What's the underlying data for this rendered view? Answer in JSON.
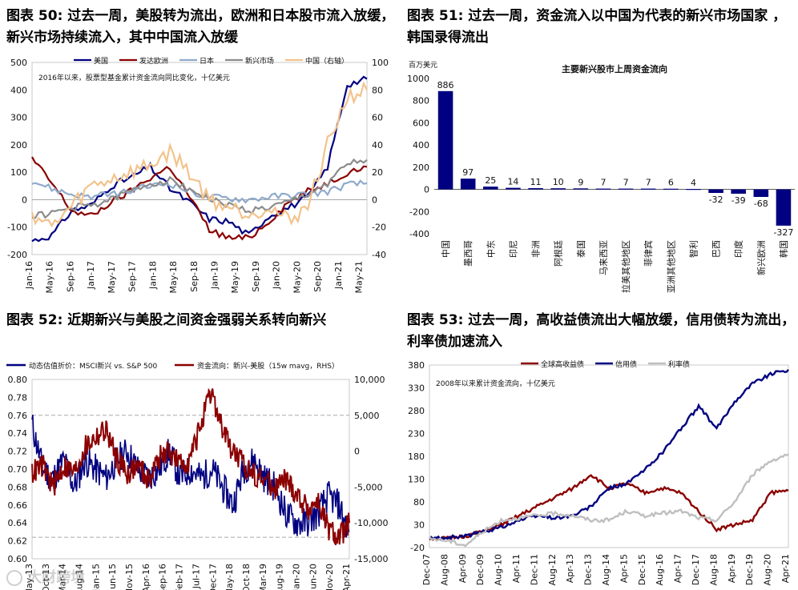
{
  "figures": {
    "f50": {
      "title": "图表 50: 过去一周，美股转为流出，欧洲和日本股市流入放缓，新兴市场持续流入，其中中国流入放缓"
    },
    "f51": {
      "title": "图表 51: 过去一周，资金流入以中国为代表的新兴市场国家 ，韩国录得流出"
    },
    "f52": {
      "title": "图表 52: 近期新兴与美股之间资金强弱关系转向新兴"
    },
    "f53": {
      "title": "图表 53: 过去一周，高收益债流出大幅放缓，信用债转为流出，利率债加速流入"
    }
  },
  "watermark": "大财跨境",
  "chart_data": [
    {
      "id": "f50",
      "type": "line",
      "annotation": "2016年以来，股票型基金累计资金流向同比变化，十亿美元",
      "x_ticks": [
        "Jan-16",
        "May-16",
        "Sep-16",
        "Jan-17",
        "May-17",
        "Sep-17",
        "Jan-18",
        "May-18",
        "Sep-18",
        "Jan-19",
        "May-19",
        "Sep-19",
        "Jan-20",
        "May-20",
        "Sep-20",
        "Jan-21",
        "May-21"
      ],
      "x": [
        0,
        4,
        8,
        12,
        16,
        20,
        24,
        28,
        32,
        36,
        40,
        44,
        48,
        52,
        56,
        60,
        64,
        65
      ],
      "ylim": [
        -200,
        500
      ],
      "y_ticks": [
        -200,
        -100,
        0,
        100,
        200,
        300,
        400,
        500
      ],
      "y2lim": [
        -40,
        100
      ],
      "y2_ticks": [
        -40,
        -20,
        0,
        20,
        40,
        60,
        80,
        100
      ],
      "legend_position": "top",
      "series": [
        {
          "name": "美国",
          "color": "#000080",
          "axis": "left",
          "values": [
            -150,
            -130,
            -40,
            -20,
            50,
            80,
            120,
            40,
            -10,
            -70,
            -80,
            -130,
            -60,
            -30,
            10,
            120,
            420,
            440
          ]
        },
        {
          "name": "发达欧洲",
          "color": "#8B0000",
          "axis": "left",
          "values": [
            150,
            60,
            -40,
            -60,
            -10,
            30,
            80,
            120,
            10,
            -110,
            -140,
            -140,
            -80,
            -10,
            30,
            60,
            100,
            120
          ]
        },
        {
          "name": "日本",
          "color": "#8FAACC",
          "axis": "left",
          "values": [
            70,
            40,
            20,
            10,
            20,
            30,
            50,
            60,
            30,
            10,
            5,
            0,
            10,
            15,
            20,
            30,
            55,
            60
          ]
        },
        {
          "name": "新兴市场",
          "color": "#8C8C8C",
          "axis": "left",
          "values": [
            -60,
            -50,
            -30,
            -20,
            0,
            30,
            60,
            70,
            40,
            0,
            -20,
            -40,
            -30,
            -10,
            20,
            60,
            130,
            145
          ]
        },
        {
          "name": "中国（右轴）",
          "color": "#F2C38C",
          "axis": "right",
          "values": [
            -10,
            -20,
            -5,
            10,
            15,
            20,
            25,
            35,
            20,
            0,
            -5,
            -10,
            -5,
            -15,
            -5,
            40,
            75,
            80
          ]
        }
      ]
    },
    {
      "id": "f51",
      "type": "bar",
      "title": "主要新兴股市上周资金流向",
      "ylabel": "百万美元",
      "ylim": [
        -400,
        1000
      ],
      "y_ticks": [
        -400,
        -200,
        0,
        200,
        400,
        600,
        800,
        1000
      ],
      "categories": [
        "中国",
        "墨西哥",
        "中东",
        "印尼",
        "非洲",
        "阿根廷",
        "泰国",
        "马来西亚",
        "拉美其他地区",
        "菲律宾",
        "亚洲其他地区",
        "智利",
        "巴西",
        "印度",
        "新兴欧洲",
        "韩国"
      ],
      "values": [
        886,
        97,
        25,
        14,
        11,
        10,
        9,
        7,
        7,
        7,
        6,
        4,
        -32,
        -39,
        -68,
        -327
      ],
      "color": "#000080",
      "negative_label_color": "#FF0000"
    },
    {
      "id": "f52",
      "type": "line",
      "x_ticks": [
        "May-13",
        "Oct-13",
        "Mar-14",
        "Aug-14",
        "Jan-15",
        "Jun-15",
        "Nov-15",
        "Apr-16",
        "Sep-16",
        "Feb-17",
        "Jul-17",
        "Dec-17",
        "May-18",
        "Oct-18",
        "Mar-19",
        "Aug-19",
        "Jan-20",
        "Jun-20",
        "Nov-20",
        "Apr-21"
      ],
      "ylim": [
        0.6,
        0.8
      ],
      "y_ticks": [
        "0.60",
        "0.62",
        "0.64",
        "0.66",
        "0.68",
        "0.70",
        "0.72",
        "0.74",
        "0.76",
        "0.78",
        "0.80"
      ],
      "y2lim": [
        -15000,
        10000
      ],
      "y2_ticks": [
        "-15,000",
        "-10,000",
        "-5,000",
        "0",
        "5,000",
        "10,000"
      ],
      "reference_lines_right_axis": [
        5000,
        -12000
      ],
      "legend_position": "top",
      "series": [
        {
          "name": "动态估值折价：MSCI新兴 vs. S&P 500",
          "color": "#000080",
          "axis": "left",
          "values": [
            0.75,
            0.7,
            0.69,
            0.71,
            0.68,
            0.71,
            0.7,
            0.69,
            0.71,
            0.72,
            0.7,
            0.69,
            0.7,
            0.72,
            0.69,
            0.7,
            0.69,
            0.7,
            0.68,
            0.66,
            0.7,
            0.71,
            0.69,
            0.68,
            0.65,
            0.64,
            0.64,
            0.65,
            0.67,
            0.66,
            0.63
          ]
        },
        {
          "name": "资金流向：新兴-美股（15w mavg，RHS）",
          "color": "#8B0000",
          "axis": "right",
          "values": [
            -3000,
            -2000,
            -5000,
            -2000,
            -3000,
            500,
            2000,
            3000,
            -1000,
            -3000,
            -2000,
            -4000,
            -1000,
            0,
            -2000,
            -1000,
            4000,
            8000,
            3000,
            0,
            -2000,
            -3000,
            -4000,
            -5000,
            -4000,
            -6000,
            -8000,
            -7000,
            -11000,
            -12000,
            -10000
          ]
        }
      ]
    },
    {
      "id": "f53",
      "type": "line",
      "annotation": "2008年以来累计资金流向，十亿美元",
      "x_ticks": [
        "Dec-07",
        "Aug-08",
        "Apr-09",
        "Dec-09",
        "Aug-10",
        "Apr-11",
        "Dec-11",
        "Aug-12",
        "Apr-13",
        "Dec-13",
        "Aug-14",
        "Apr-15",
        "Dec-15",
        "Aug-16",
        "Apr-17",
        "Dec-17",
        "Aug-18",
        "Apr-19",
        "Dec-19",
        "Aug-20",
        "Apr-21"
      ],
      "ylim": [
        -20,
        380
      ],
      "y_ticks": [
        -20,
        30,
        80,
        130,
        180,
        230,
        280,
        330,
        380
      ],
      "legend_position": "top",
      "series": [
        {
          "name": "全球高收益债",
          "color": "#8B0000",
          "values": [
            0,
            0,
            5,
            15,
            30,
            50,
            70,
            90,
            110,
            140,
            110,
            120,
            100,
            110,
            100,
            60,
            20,
            30,
            40,
            100,
            105
          ]
        },
        {
          "name": "信用债",
          "color": "#000080",
          "values": [
            0,
            2,
            5,
            15,
            25,
            40,
            50,
            45,
            50,
            70,
            110,
            120,
            150,
            190,
            240,
            290,
            240,
            300,
            340,
            360,
            370
          ]
        },
        {
          "name": "利率债",
          "color": "#BFBFBF",
          "values": [
            0,
            -5,
            -15,
            15,
            40,
            45,
            50,
            55,
            50,
            40,
            40,
            60,
            50,
            55,
            60,
            45,
            40,
            80,
            140,
            170,
            185
          ]
        }
      ]
    }
  ]
}
